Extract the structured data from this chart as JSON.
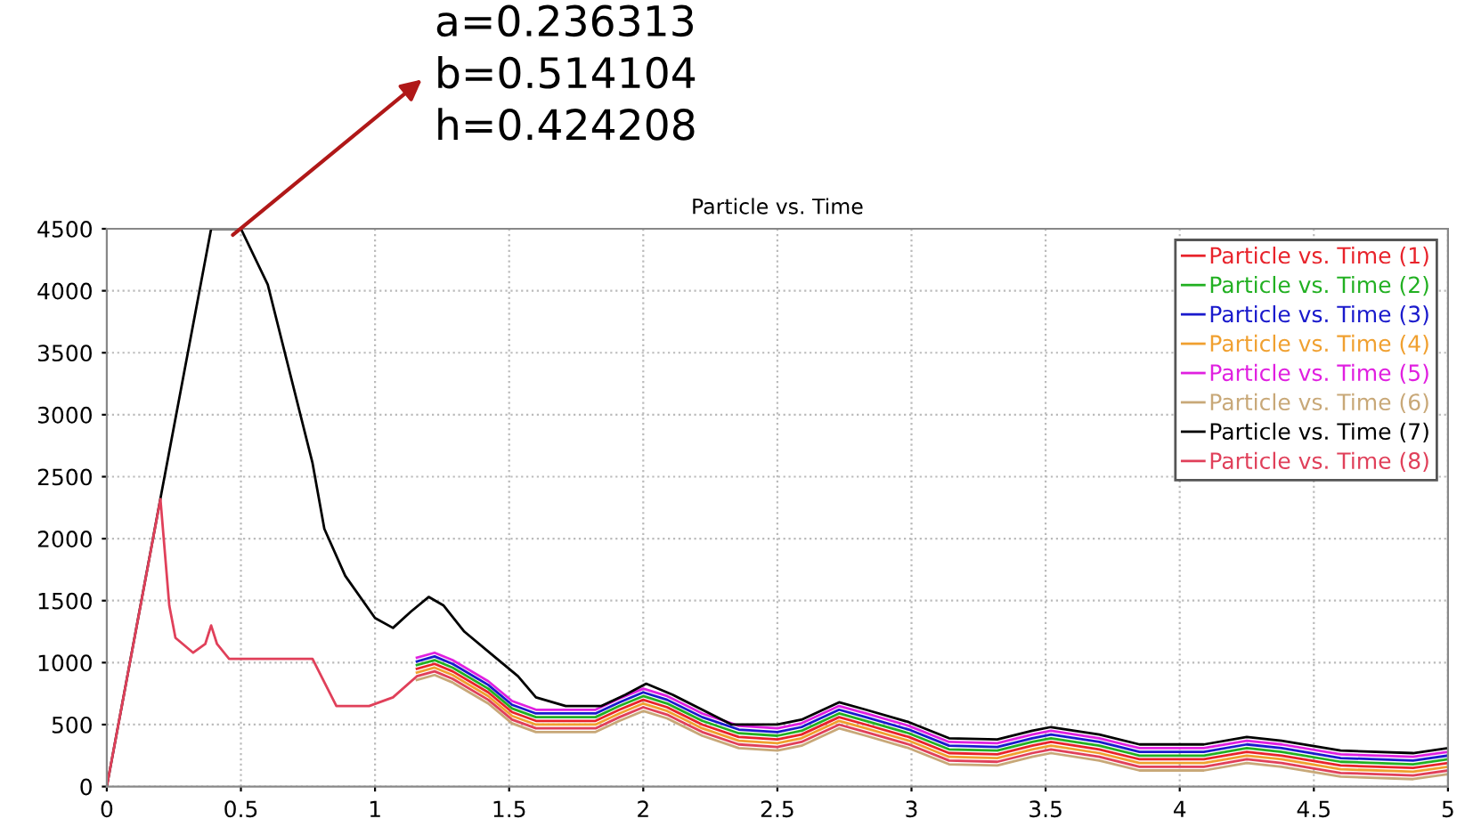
{
  "chart_data": {
    "type": "line",
    "title": "Particle vs. Time",
    "annotations": [
      {
        "text": "a=0.236313\nb=0.514104\nh=0.424208",
        "x": 0.47,
        "y": 4450
      }
    ],
    "x": [
      0,
      0.2,
      0.233,
      0.256,
      0.322,
      0.367,
      0.389,
      0.411,
      0.456,
      0.767,
      0.856,
      0.978,
      1.067,
      1.156,
      1.222,
      1.289,
      1.422,
      1.511,
      1.6,
      1.822,
      1.911,
      2.0,
      2.089,
      2.22,
      2.356,
      2.5,
      2.59,
      2.73,
      2.83,
      2.99,
      3.14,
      3.32,
      3.45,
      3.52,
      3.7,
      3.85,
      4.09,
      4.25,
      4.38,
      4.6,
      4.87,
      5.0
    ],
    "series": [
      {
        "name": "Particle vs. Time (1)",
        "color": "#e8232b",
        "values": [
          null,
          null,
          null,
          null,
          null,
          null,
          null,
          null,
          null,
          null,
          null,
          null,
          null,
          950,
          990,
          930,
          760,
          600,
          530,
          530,
          620,
          700,
          640,
          500,
          400,
          380,
          420,
          560,
          500,
          400,
          270,
          260,
          330,
          360,
          300,
          220,
          220,
          280,
          250,
          170,
          150,
          190
        ]
      },
      {
        "name": "Particle vs. Time (2)",
        "color": "#22b022",
        "values": [
          null,
          null,
          null,
          null,
          null,
          null,
          null,
          null,
          null,
          null,
          null,
          null,
          null,
          980,
          1020,
          960,
          790,
          630,
          560,
          560,
          650,
          730,
          670,
          530,
          430,
          410,
          450,
          590,
          530,
          430,
          300,
          290,
          360,
          390,
          330,
          250,
          250,
          310,
          280,
          200,
          180,
          220
        ]
      },
      {
        "name": "Particle vs. Time (3)",
        "color": "#1a1acc",
        "values": [
          null,
          null,
          null,
          null,
          null,
          null,
          null,
          null,
          null,
          null,
          null,
          null,
          null,
          1010,
          1050,
          990,
          820,
          660,
          590,
          590,
          680,
          760,
          700,
          560,
          460,
          440,
          480,
          620,
          560,
          460,
          330,
          320,
          390,
          420,
          360,
          280,
          280,
          340,
          310,
          230,
          210,
          250
        ]
      },
      {
        "name": "Particle vs. Time (4)",
        "color": "#f0a030",
        "values": [
          null,
          null,
          null,
          null,
          null,
          null,
          null,
          null,
          null,
          null,
          null,
          null,
          null,
          920,
          960,
          900,
          730,
          570,
          500,
          500,
          590,
          670,
          610,
          470,
          370,
          350,
          390,
          530,
          470,
          370,
          240,
          230,
          300,
          330,
          270,
          190,
          190,
          250,
          220,
          140,
          120,
          160
        ]
      },
      {
        "name": "Particle vs. Time (5)",
        "color": "#e020e0",
        "values": [
          null,
          null,
          null,
          null,
          null,
          null,
          null,
          null,
          null,
          null,
          null,
          null,
          null,
          1040,
          1080,
          1020,
          850,
          690,
          620,
          620,
          710,
          790,
          730,
          590,
          490,
          470,
          510,
          650,
          590,
          490,
          360,
          350,
          420,
          450,
          390,
          310,
          310,
          370,
          340,
          260,
          240,
          280
        ]
      },
      {
        "name": "Particle vs. Time (6)",
        "color": "#c8a878",
        "values": [
          null,
          null,
          null,
          null,
          null,
          null,
          null,
          null,
          null,
          null,
          null,
          null,
          null,
          860,
          900,
          840,
          670,
          510,
          440,
          440,
          530,
          610,
          550,
          410,
          310,
          290,
          330,
          470,
          410,
          310,
          180,
          170,
          240,
          270,
          210,
          130,
          130,
          190,
          160,
          80,
          60,
          100
        ]
      },
      {
        "name": "Particle vs. Time (7)",
        "color": "#000000",
        "x": [
          0,
          0.204,
          0.389,
          0.5,
          0.6,
          0.767,
          0.811,
          0.889,
          1,
          1.067,
          1.133,
          1.2,
          1.256,
          1.333,
          1.444,
          1.533,
          1.6,
          1.711,
          1.844,
          1.933,
          2.011,
          2.11,
          2.22,
          2.33,
          2.5,
          2.59,
          2.73,
          2.83,
          2.99,
          3.14,
          3.32,
          3.45,
          3.52,
          3.7,
          3.85,
          4.09,
          4.25,
          4.38,
          4.6,
          4.87,
          5.0
        ],
        "values": [
          0,
          2370,
          4500,
          4500,
          4050,
          2610,
          2080,
          1700,
          1360,
          1280,
          1410,
          1530,
          1460,
          1250,
          1050,
          890,
          720,
          650,
          650,
          740,
          830,
          740,
          620,
          500,
          500,
          540,
          680,
          620,
          520,
          390,
          380,
          450,
          480,
          420,
          340,
          340,
          400,
          370,
          290,
          270,
          310
        ]
      },
      {
        "name": "Particle vs. Time (8)",
        "color": "#e0405a",
        "values": [
          0,
          2320,
          1460,
          1200,
          1080,
          1150,
          1300,
          1150,
          1030,
          1030,
          650,
          650,
          720,
          890,
          930,
          870,
          700,
          540,
          470,
          470,
          560,
          640,
          580,
          440,
          340,
          320,
          360,
          500,
          440,
          340,
          210,
          200,
          270,
          300,
          240,
          160,
          160,
          220,
          190,
          110,
          90,
          130
        ]
      }
    ],
    "xlim": [
      0,
      5
    ],
    "xticks": [
      0,
      0.5,
      1,
      1.5,
      2,
      2.5,
      3,
      3.5,
      4,
      4.5,
      5
    ],
    "ylim": [
      0,
      4500
    ],
    "yticks": [
      0,
      500,
      1000,
      1500,
      2000,
      2500,
      3000,
      3500,
      4000,
      4500
    ],
    "grid": true,
    "legend": "top right",
    "marker": "none",
    "line_style": "solid"
  }
}
